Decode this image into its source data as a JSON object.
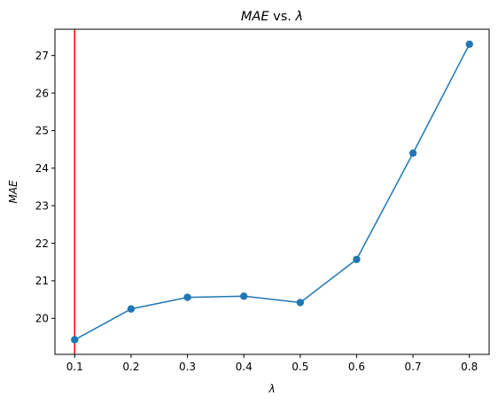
{
  "chart_data": {
    "type": "line",
    "title": {
      "prefix": "MAE",
      "middle": " vs. ",
      "suffix": "λ"
    },
    "xlabel": "λ",
    "ylabel": "MAE",
    "x": [
      0.1,
      0.2,
      0.3,
      0.4,
      0.5,
      0.6,
      0.7,
      0.8
    ],
    "series": [
      {
        "values": [
          19.43,
          20.25,
          20.56,
          20.59,
          20.42,
          21.57,
          24.4,
          27.3
        ],
        "color": "#1f77b4",
        "marker": "circle"
      }
    ],
    "xlim": [
      0.065,
      0.835
    ],
    "ylim": [
      19.04,
      27.7
    ],
    "xticks": [
      0.1,
      0.2,
      0.3,
      0.4,
      0.5,
      0.6,
      0.7,
      0.8
    ],
    "xtick_labels": [
      "0.1",
      "0.2",
      "0.3",
      "0.4",
      "0.5",
      "0.6",
      "0.7",
      "0.8"
    ],
    "yticks": [
      20,
      21,
      22,
      23,
      24,
      25,
      26,
      27
    ],
    "ytick_labels": [
      "20",
      "21",
      "22",
      "23",
      "24",
      "25",
      "26",
      "27"
    ],
    "vline": {
      "x": 0.1,
      "color": "#ff0000"
    },
    "grid": false,
    "legend": "none"
  }
}
